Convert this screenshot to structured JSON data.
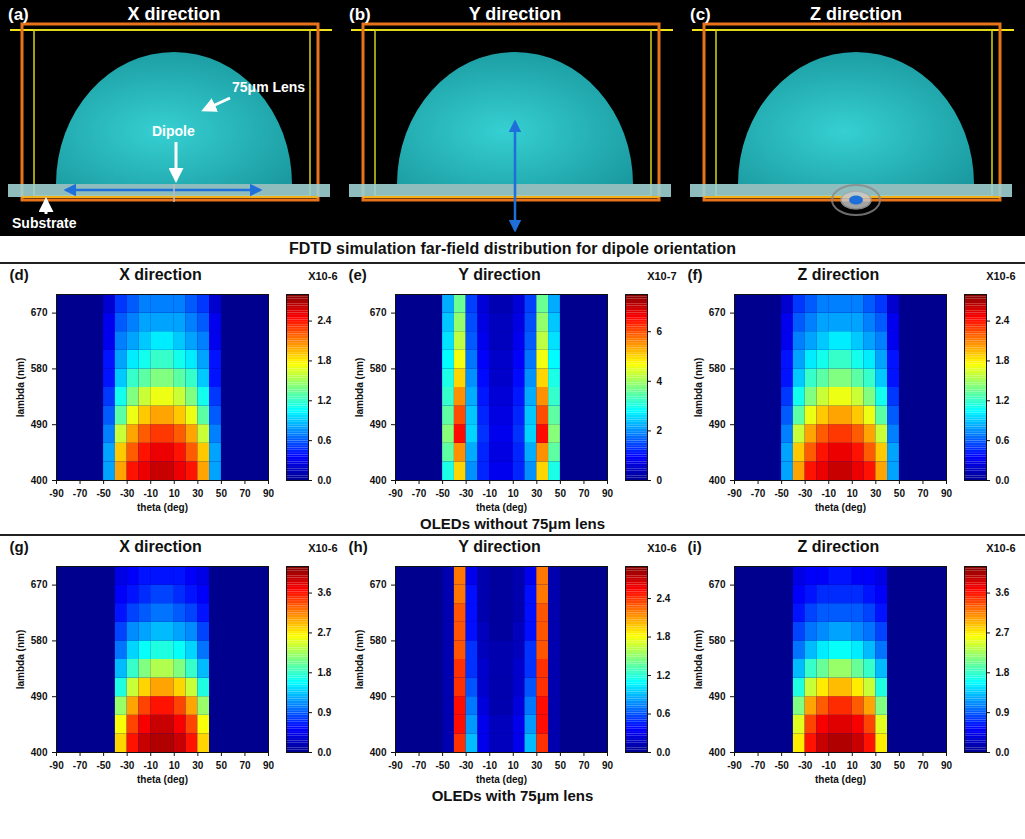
{
  "schematic": {
    "panels": [
      {
        "letter": "(a)",
        "title": "X direction"
      },
      {
        "letter": "(b)",
        "title": "Y direction"
      },
      {
        "letter": "(c)",
        "title": "Z direction"
      }
    ],
    "lens_label": "75μm Lens",
    "dipole_label": "Dipole",
    "substrate_label": "Substrate",
    "caption": "FDTD simulation far-field distribution for dipole orientation"
  },
  "captions": [
    "OLEDs without 75μm lens",
    "OLEDs with 75μm lens"
  ],
  "chart_data": [
    {
      "type": "heatmap",
      "letter": "(d)",
      "title": "X direction",
      "x_label": "theta (deg)",
      "y_label": "lambda (nm)",
      "xlim": [
        -90,
        90
      ],
      "xticks": [
        -90,
        -70,
        -50,
        -30,
        -10,
        10,
        30,
        50,
        70,
        90
      ],
      "ylim": [
        400,
        700
      ],
      "yticks": [
        400,
        490,
        580,
        670
      ],
      "theta_edges": [
        -50,
        -40,
        -30,
        -20,
        -10,
        0,
        10,
        20,
        30,
        40,
        50
      ],
      "lambda_edges": [
        400,
        430,
        460,
        490,
        520,
        550,
        580,
        610,
        640,
        670,
        700
      ],
      "cells": [
        [
          0.8,
          2.0,
          2.4,
          2.5,
          2.6,
          2.6,
          2.5,
          2.4,
          2.0,
          0.8
        ],
        [
          0.8,
          1.9,
          2.2,
          2.4,
          2.5,
          2.5,
          2.4,
          2.2,
          1.9,
          0.8
        ],
        [
          0.7,
          1.6,
          2.0,
          2.2,
          2.3,
          2.3,
          2.2,
          2.0,
          1.6,
          0.7
        ],
        [
          0.6,
          1.3,
          1.7,
          1.9,
          2.0,
          2.0,
          1.9,
          1.7,
          1.3,
          0.6
        ],
        [
          0.5,
          1.1,
          1.4,
          1.6,
          1.7,
          1.7,
          1.6,
          1.4,
          1.1,
          0.5
        ],
        [
          0.4,
          0.9,
          1.2,
          1.3,
          1.4,
          1.4,
          1.3,
          1.2,
          0.9,
          0.4
        ],
        [
          0.4,
          0.8,
          1.0,
          1.1,
          1.2,
          1.2,
          1.1,
          1.0,
          0.8,
          0.4
        ],
        [
          0.3,
          0.7,
          0.8,
          0.9,
          1.0,
          1.0,
          0.9,
          0.8,
          0.7,
          0.3
        ],
        [
          0.3,
          0.6,
          0.7,
          0.8,
          0.8,
          0.8,
          0.8,
          0.7,
          0.6,
          0.3
        ],
        [
          0.2,
          0.5,
          0.6,
          0.7,
          0.7,
          0.7,
          0.7,
          0.6,
          0.5,
          0.2
        ]
      ],
      "colorbar_lim": [
        0,
        2.8
      ],
      "colorbar_ticks": [
        {
          "value": 0,
          "label": "0.0"
        },
        {
          "value": 0.6,
          "label": "0.6"
        },
        {
          "value": 1.2,
          "label": "1.2"
        },
        {
          "value": 1.8,
          "label": "1.8"
        },
        {
          "value": 2.4,
          "label": "2.4"
        }
      ],
      "colorbar_label": "X10-6"
    },
    {
      "type": "heatmap",
      "letter": "(e)",
      "title": "Y direction",
      "x_label": "theta (deg)",
      "y_label": "lambda (nm)",
      "xlim": [
        -90,
        90
      ],
      "xticks": [
        -90,
        -70,
        -50,
        -30,
        -10,
        10,
        30,
        50,
        70,
        90
      ],
      "ylim": [
        400,
        700
      ],
      "yticks": [
        400,
        490,
        580,
        670
      ],
      "theta_edges": [
        -50,
        -40,
        -30,
        -20,
        -10,
        0,
        10,
        20,
        30,
        40,
        50
      ],
      "lambda_edges": [
        400,
        430,
        460,
        490,
        520,
        550,
        580,
        610,
        640,
        670,
        700
      ],
      "cells": [
        [
          3.0,
          5.0,
          2.0,
          1.2,
          0.8,
          0.8,
          1.2,
          2.0,
          5.0,
          3.0
        ],
        [
          3.5,
          5.5,
          2.2,
          1.2,
          0.7,
          0.7,
          1.2,
          2.2,
          5.5,
          3.5
        ],
        [
          3.8,
          6.5,
          2.5,
          1.3,
          0.8,
          0.8,
          1.3,
          2.5,
          6.5,
          3.8
        ],
        [
          3.5,
          6.0,
          2.4,
          1.2,
          0.7,
          0.7,
          1.2,
          2.4,
          6.0,
          3.5
        ],
        [
          3.2,
          5.5,
          2.2,
          1.1,
          0.6,
          0.6,
          1.1,
          2.2,
          5.5,
          3.2
        ],
        [
          3.0,
          5.0,
          2.0,
          1.0,
          0.5,
          0.5,
          1.0,
          2.0,
          5.0,
          3.0
        ],
        [
          2.8,
          4.6,
          1.8,
          0.9,
          0.5,
          0.5,
          0.9,
          1.8,
          4.6,
          2.8
        ],
        [
          2.6,
          4.2,
          1.6,
          0.8,
          0.4,
          0.4,
          0.8,
          1.6,
          4.2,
          2.6
        ],
        [
          2.4,
          3.9,
          1.5,
          0.7,
          0.4,
          0.4,
          0.7,
          1.5,
          3.9,
          2.4
        ],
        [
          2.2,
          3.6,
          1.4,
          0.6,
          0.3,
          0.3,
          0.6,
          1.4,
          3.6,
          2.2
        ]
      ],
      "colorbar_lim": [
        0,
        7.5
      ],
      "colorbar_ticks": [
        0,
        2,
        4,
        6
      ],
      "colorbar_label": "X10-7"
    },
    {
      "type": "heatmap",
      "letter": "(f)",
      "title": "Z direction",
      "x_label": "theta (deg)",
      "y_label": "lambda (nm)",
      "xlim": [
        -90,
        90
      ],
      "xticks": [
        -90,
        -70,
        -50,
        -30,
        -10,
        10,
        30,
        50,
        70,
        90
      ],
      "ylim": [
        400,
        700
      ],
      "yticks": [
        400,
        490,
        580,
        670
      ],
      "theta_edges": [
        -50,
        -40,
        -30,
        -20,
        -10,
        0,
        10,
        20,
        30,
        40,
        50
      ],
      "lambda_edges": [
        400,
        430,
        460,
        490,
        520,
        550,
        580,
        610,
        640,
        670,
        700
      ],
      "cells": [
        [
          0.8,
          2.0,
          2.4,
          2.5,
          2.6,
          2.6,
          2.5,
          2.4,
          2.0,
          0.8
        ],
        [
          0.8,
          1.9,
          2.2,
          2.4,
          2.5,
          2.5,
          2.4,
          2.2,
          1.9,
          0.8
        ],
        [
          0.7,
          1.6,
          2.0,
          2.2,
          2.3,
          2.3,
          2.2,
          2.0,
          1.6,
          0.7
        ],
        [
          0.6,
          1.3,
          1.7,
          1.9,
          2.0,
          2.0,
          1.9,
          1.7,
          1.3,
          0.6
        ],
        [
          0.5,
          1.1,
          1.4,
          1.6,
          1.7,
          1.7,
          1.6,
          1.4,
          1.1,
          0.5
        ],
        [
          0.4,
          0.9,
          1.2,
          1.3,
          1.4,
          1.4,
          1.3,
          1.2,
          0.9,
          0.4
        ],
        [
          0.4,
          0.8,
          1.0,
          1.1,
          1.2,
          1.2,
          1.1,
          1.0,
          0.8,
          0.4
        ],
        [
          0.3,
          0.7,
          0.8,
          0.9,
          1.0,
          1.0,
          0.9,
          0.8,
          0.7,
          0.3
        ],
        [
          0.3,
          0.6,
          0.7,
          0.8,
          0.8,
          0.8,
          0.8,
          0.7,
          0.6,
          0.3
        ],
        [
          0.2,
          0.5,
          0.6,
          0.7,
          0.7,
          0.7,
          0.7,
          0.6,
          0.5,
          0.2
        ]
      ],
      "colorbar_lim": [
        0,
        2.8
      ],
      "colorbar_ticks": [
        {
          "value": 0,
          "label": "0.0"
        },
        {
          "value": 0.6,
          "label": "0.6"
        },
        {
          "value": 1.2,
          "label": "1.2"
        },
        {
          "value": 1.8,
          "label": "1.8"
        },
        {
          "value": 2.4,
          "label": "2.4"
        }
      ],
      "colorbar_label": "X10-6"
    },
    {
      "type": "heatmap",
      "letter": "(g)",
      "title": "X direction",
      "x_label": "theta (deg)",
      "y_label": "lambda (nm)",
      "xlim": [
        -90,
        90
      ],
      "xticks": [
        -90,
        -70,
        -50,
        -30,
        -10,
        10,
        30,
        50,
        70,
        90
      ],
      "ylim": [
        400,
        700
      ],
      "yticks": [
        400,
        490,
        580,
        670
      ],
      "theta_edges": [
        -50,
        -40,
        -30,
        -20,
        -10,
        0,
        10,
        20,
        30,
        40,
        50
      ],
      "lambda_edges": [
        400,
        430,
        460,
        490,
        520,
        550,
        580,
        610,
        640,
        670,
        700
      ],
      "cells": [
        [
          0.0,
          2.8,
          3.6,
          3.9,
          4.0,
          4.0,
          3.9,
          3.6,
          2.8,
          0.0
        ],
        [
          0.0,
          2.6,
          3.4,
          3.7,
          3.9,
          3.9,
          3.7,
          3.4,
          2.6,
          0.0
        ],
        [
          0.0,
          2.2,
          3.0,
          3.4,
          3.6,
          3.6,
          3.4,
          3.0,
          2.2,
          0.0
        ],
        [
          0.0,
          1.7,
          2.4,
          2.8,
          3.0,
          3.0,
          2.8,
          2.4,
          1.7,
          0.0
        ],
        [
          0.0,
          1.3,
          1.8,
          2.1,
          2.3,
          2.3,
          2.1,
          1.8,
          1.3,
          0.0
        ],
        [
          0.0,
          1.0,
          1.4,
          1.6,
          1.7,
          1.7,
          1.6,
          1.4,
          1.0,
          0.0
        ],
        [
          0.0,
          0.8,
          1.1,
          1.2,
          1.3,
          1.3,
          1.2,
          1.1,
          0.8,
          0.0
        ],
        [
          0.0,
          0.6,
          0.8,
          0.9,
          1.0,
          1.0,
          0.9,
          0.8,
          0.6,
          0.0
        ],
        [
          0.0,
          0.5,
          0.6,
          0.7,
          0.8,
          0.8,
          0.7,
          0.6,
          0.5,
          0.0
        ],
        [
          0.0,
          0.4,
          0.5,
          0.6,
          0.6,
          0.6,
          0.6,
          0.5,
          0.4,
          0.0
        ]
      ],
      "colorbar_lim": [
        0,
        4.2
      ],
      "colorbar_ticks": [
        {
          "value": 0,
          "label": "0.0"
        },
        {
          "value": 0.9,
          "label": "0.9"
        },
        {
          "value": 1.8,
          "label": "1.8"
        },
        {
          "value": 2.7,
          "label": "2.7"
        },
        {
          "value": 3.6,
          "label": "3.6"
        }
      ],
      "colorbar_label": "X10-6"
    },
    {
      "type": "heatmap",
      "letter": "(h)",
      "title": "Y direction",
      "x_label": "theta (deg)",
      "y_label": "lambda (nm)",
      "xlim": [
        -90,
        90
      ],
      "xticks": [
        -90,
        -70,
        -50,
        -30,
        -10,
        10,
        30,
        50,
        70,
        90
      ],
      "ylim": [
        400,
        700
      ],
      "yticks": [
        400,
        490,
        580,
        670
      ],
      "theta_edges": [
        -50,
        -40,
        -30,
        -20,
        -10,
        0,
        10,
        20,
        30,
        40,
        50
      ],
      "lambda_edges": [
        400,
        430,
        460,
        490,
        520,
        550,
        580,
        610,
        640,
        670,
        700
      ],
      "cells": [
        [
          0.1,
          2.4,
          0.9,
          0.3,
          0.15,
          0.15,
          0.3,
          0.9,
          2.4,
          0.1
        ],
        [
          0.1,
          2.5,
          0.8,
          0.3,
          0.15,
          0.15,
          0.3,
          0.8,
          2.5,
          0.1
        ],
        [
          0.1,
          2.5,
          0.7,
          0.25,
          0.1,
          0.1,
          0.25,
          0.7,
          2.5,
          0.1
        ],
        [
          0.1,
          2.4,
          0.6,
          0.2,
          0.1,
          0.1,
          0.2,
          0.6,
          2.4,
          0.1
        ],
        [
          0.1,
          2.4,
          0.5,
          0.2,
          0.1,
          0.1,
          0.2,
          0.5,
          2.4,
          0.1
        ],
        [
          0.1,
          2.3,
          0.5,
          0.15,
          0.1,
          0.1,
          0.15,
          0.5,
          2.3,
          0.1
        ],
        [
          0.1,
          2.3,
          0.4,
          0.15,
          0.05,
          0.05,
          0.15,
          0.4,
          2.3,
          0.1
        ],
        [
          0.1,
          2.3,
          0.4,
          0.1,
          0.05,
          0.05,
          0.1,
          0.4,
          2.3,
          0.1
        ],
        [
          0.1,
          2.2,
          0.4,
          0.1,
          0.05,
          0.05,
          0.1,
          0.4,
          2.2,
          0.1
        ],
        [
          0.1,
          2.2,
          0.3,
          0.1,
          0.05,
          0.05,
          0.1,
          0.3,
          2.2,
          0.1
        ]
      ],
      "colorbar_lim": [
        0,
        2.9
      ],
      "colorbar_ticks": [
        {
          "value": 0,
          "label": "0.0"
        },
        {
          "value": 0.6,
          "label": "0.6"
        },
        {
          "value": 1.2,
          "label": "1.2"
        },
        {
          "value": 1.8,
          "label": "1.8"
        },
        {
          "value": 2.4,
          "label": "2.4"
        }
      ],
      "colorbar_label": "X10-6"
    },
    {
      "type": "heatmap",
      "letter": "(i)",
      "title": "Z direction",
      "x_label": "theta (deg)",
      "y_label": "lambda (nm)",
      "xlim": [
        -90,
        90
      ],
      "xticks": [
        -90,
        -70,
        -50,
        -30,
        -10,
        10,
        30,
        50,
        70,
        90
      ],
      "ylim": [
        400,
        700
      ],
      "yticks": [
        400,
        490,
        580,
        670
      ],
      "theta_edges": [
        -50,
        -40,
        -30,
        -20,
        -10,
        0,
        10,
        20,
        30,
        40,
        50
      ],
      "lambda_edges": [
        400,
        430,
        460,
        490,
        520,
        550,
        580,
        610,
        640,
        670,
        700
      ],
      "cells": [
        [
          0.0,
          2.7,
          3.6,
          3.9,
          4.0,
          4.0,
          3.9,
          3.6,
          2.7,
          0.0
        ],
        [
          0.0,
          2.5,
          3.4,
          3.7,
          3.8,
          3.8,
          3.7,
          3.4,
          2.5,
          0.0
        ],
        [
          0.0,
          2.1,
          3.0,
          3.3,
          3.5,
          3.5,
          3.3,
          3.0,
          2.1,
          0.0
        ],
        [
          0.0,
          1.7,
          2.4,
          2.7,
          2.9,
          2.9,
          2.7,
          2.4,
          1.7,
          0.0
        ],
        [
          0.0,
          1.3,
          1.8,
          2.0,
          2.2,
          2.2,
          2.0,
          1.8,
          1.3,
          0.0
        ],
        [
          0.0,
          1.0,
          1.3,
          1.5,
          1.6,
          1.6,
          1.5,
          1.3,
          1.0,
          0.0
        ],
        [
          0.0,
          0.8,
          1.0,
          1.1,
          1.2,
          1.2,
          1.1,
          1.0,
          0.8,
          0.0
        ],
        [
          0.0,
          0.6,
          0.8,
          0.9,
          0.9,
          0.9,
          0.9,
          0.8,
          0.6,
          0.0
        ],
        [
          0.0,
          0.5,
          0.6,
          0.7,
          0.7,
          0.7,
          0.7,
          0.6,
          0.5,
          0.0
        ],
        [
          0.0,
          0.4,
          0.5,
          0.5,
          0.6,
          0.6,
          0.5,
          0.5,
          0.4,
          0.0
        ]
      ],
      "colorbar_lim": [
        0,
        4.2
      ],
      "colorbar_ticks": [
        {
          "value": 0,
          "label": "0.0"
        },
        {
          "value": 0.9,
          "label": "0.9"
        },
        {
          "value": 1.8,
          "label": "1.8"
        },
        {
          "value": 2.7,
          "label": "2.7"
        },
        {
          "value": 3.6,
          "label": "3.6"
        }
      ],
      "colorbar_label": "X10-6"
    }
  ]
}
